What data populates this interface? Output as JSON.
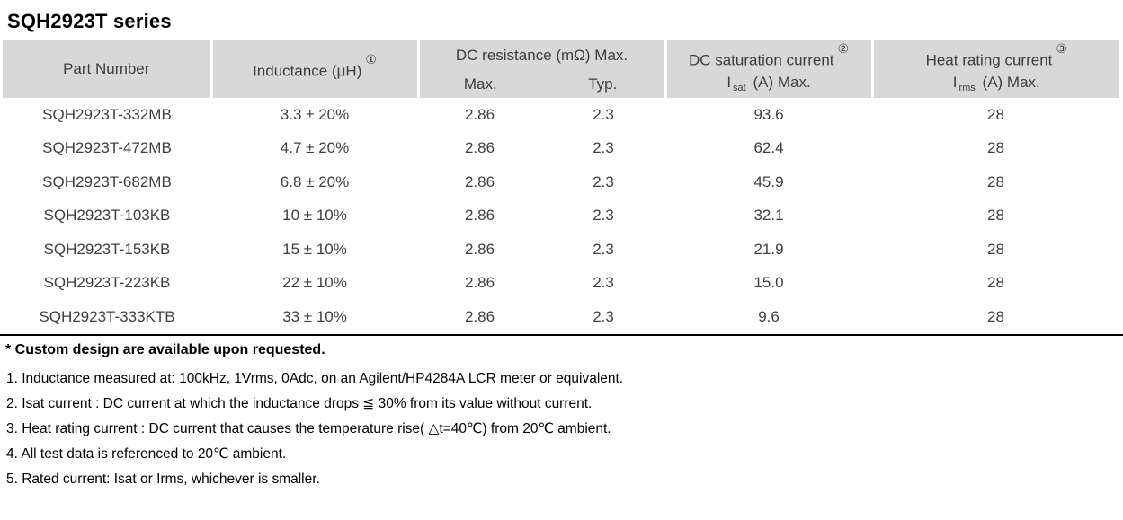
{
  "title": "SQH2923T series",
  "table": {
    "header": {
      "part_number": "Part Number",
      "inductance": "Inductance (μH)",
      "inductance_note_ref": "①",
      "dc_resistance_group": "DC resistance (mΩ) Max.",
      "dc_resistance_max": "Max.",
      "dc_resistance_typ": "Typ.",
      "dc_saturation_group": "DC saturation current",
      "dc_saturation_note_ref": "②",
      "dc_saturation_symbol": "I",
      "dc_saturation_symbol_sub": "sat",
      "dc_saturation_units": "(A)  Max.",
      "heat_rating_group": "Heat rating current",
      "heat_rating_note_ref": "③",
      "heat_rating_symbol": "I",
      "heat_rating_symbol_sub": "rms",
      "heat_rating_units": "(A)  Max."
    },
    "rows": [
      {
        "part_number": "SQH2923T-332MB",
        "inductance": "3.3 ± 20%",
        "dcr_max": "2.86",
        "dcr_typ": "2.3",
        "isat": "93.6",
        "irms": "28"
      },
      {
        "part_number": "SQH2923T-472MB",
        "inductance": "4.7 ± 20%",
        "dcr_max": "2.86",
        "dcr_typ": "2.3",
        "isat": "62.4",
        "irms": "28"
      },
      {
        "part_number": "SQH2923T-682MB",
        "inductance": "6.8 ± 20%",
        "dcr_max": "2.86",
        "dcr_typ": "2.3",
        "isat": "45.9",
        "irms": "28"
      },
      {
        "part_number": "SQH2923T-103KB",
        "inductance": "10 ± 10%",
        "dcr_max": "2.86",
        "dcr_typ": "2.3",
        "isat": "32.1",
        "irms": "28"
      },
      {
        "part_number": "SQH2923T-153KB",
        "inductance": "15 ± 10%",
        "dcr_max": "2.86",
        "dcr_typ": "2.3",
        "isat": "21.9",
        "irms": "28"
      },
      {
        "part_number": "SQH2923T-223KB",
        "inductance": "22 ± 10%",
        "dcr_max": "2.86",
        "dcr_typ": "2.3",
        "isat": "15.0",
        "irms": "28"
      },
      {
        "part_number": "SQH2923T-333KTB",
        "inductance": "33 ± 10%",
        "dcr_max": "2.86",
        "dcr_typ": "2.3",
        "isat": "9.6",
        "irms": "28"
      }
    ]
  },
  "notes": {
    "custom": "* Custom design are available upon requested.",
    "items": [
      "1. Inductance measured at: 100kHz, 1Vrms, 0Adc, on an Agilent/HP4284A LCR meter or equivalent.",
      "2. Isat current : DC current at which the inductance drops ≦ 30% from its value without current.",
      "3. Heat rating current : DC current that causes the temperature rise( △t=40℃) from 20℃ ambient.",
      "4. All test data is referenced to 20℃ ambient.",
      "5. Rated current: Isat or Irms, whichever is smaller."
    ]
  },
  "colors": {
    "header_bg": "#d8d8d8",
    "table_text": "#3f3f3f",
    "notes_text": "#000000",
    "rule": "#000000"
  }
}
